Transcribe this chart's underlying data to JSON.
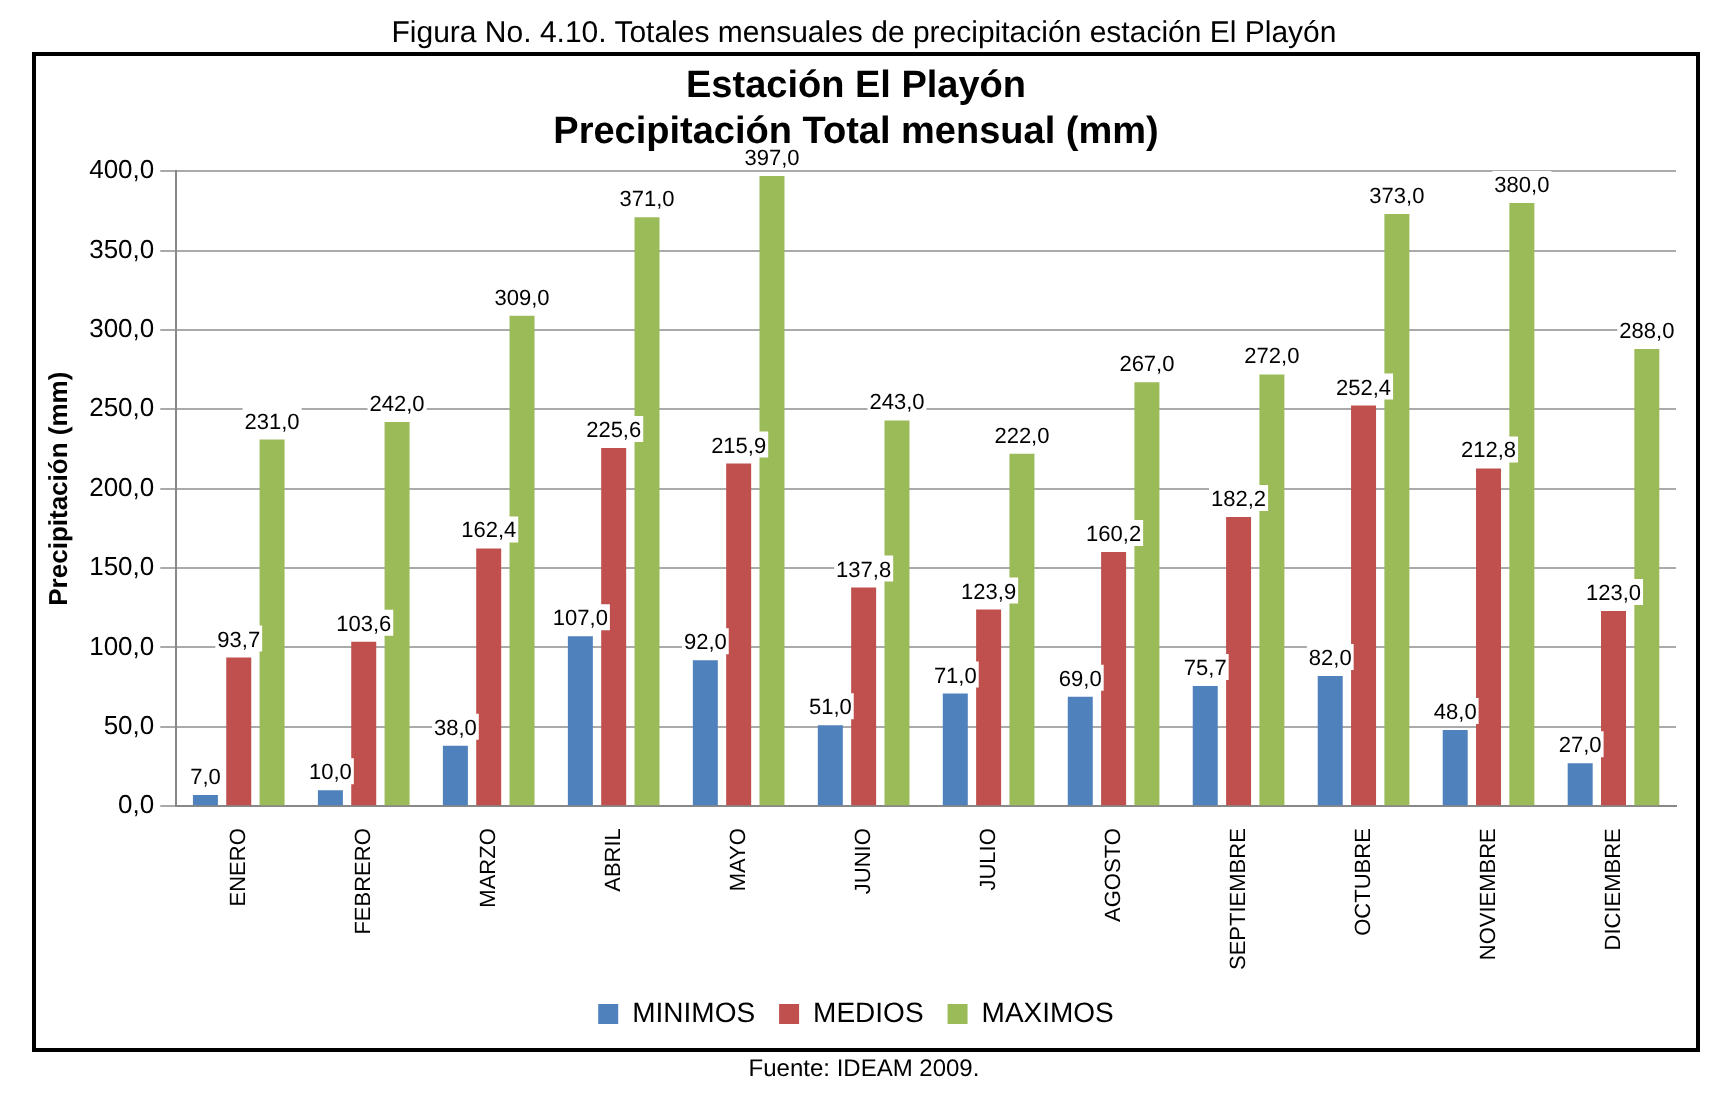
{
  "chart_data": {
    "type": "bar",
    "title": "Estación El Playón\nPrecipitación Total mensual (mm)",
    "ylabel": "Precipitación (mm)",
    "annotations": [
      "Figura No. 4.10. Totales mensuales de precipitación estación El Playón",
      "Fuente: IDEAM 2009."
    ],
    "categories": [
      "ENERO",
      "FEBRERO",
      "MARZO",
      "ABRIL",
      "MAYO",
      "JUNIO",
      "JULIO",
      "AGOSTO",
      "SEPTIEMBRE",
      "OCTUBRE",
      "NOVIEMBRE",
      "DICIEMBRE"
    ],
    "series": [
      {
        "name": "MINIMOS",
        "color": "#4f81bd",
        "values": [
          7,
          10,
          38,
          107,
          92,
          51,
          71,
          69,
          75.7,
          82,
          48,
          27
        ],
        "value_labels": [
          "7,0",
          "10,0",
          "38,0",
          "107,0",
          "92,0",
          "51,0",
          "71,0",
          "69,0",
          "75,7",
          "82,0",
          "48,0",
          "27,0"
        ]
      },
      {
        "name": "MEDIOS",
        "color": "#c0504d",
        "values": [
          93.7,
          103.6,
          162.4,
          225.6,
          215.9,
          137.8,
          123.9,
          160.2,
          182.2,
          252.4,
          212.8,
          123
        ],
        "value_labels": [
          "93,7",
          "103,6",
          "162,4",
          "225,6",
          "215,9",
          "137,8",
          "123,9",
          "160,2",
          "182,2",
          "252,4",
          "212,8",
          "123,0"
        ]
      },
      {
        "name": "MAXIMOS",
        "color": "#9bbb59",
        "values": [
          231,
          242,
          309,
          371,
          397,
          243,
          222,
          267,
          272,
          373,
          380,
          288
        ],
        "value_labels": [
          "231,0",
          "242,0",
          "309,0",
          "371,0",
          "397,0",
          "243,0",
          "222,0",
          "267,0",
          "272,0",
          "373,0",
          "380,0",
          "288,0"
        ]
      }
    ],
    "ylim": [
      0,
      400
    ],
    "yticks": [
      {
        "value": 0,
        "label": "0,0"
      },
      {
        "value": 50,
        "label": "50,0"
      },
      {
        "value": 100,
        "label": "100,0"
      },
      {
        "value": 150,
        "label": "150,0"
      },
      {
        "value": 200,
        "label": "200,0"
      },
      {
        "value": 250,
        "label": "250,0"
      },
      {
        "value": 300,
        "label": "300,0"
      },
      {
        "value": 350,
        "label": "350,0"
      },
      {
        "value": 400,
        "label": "400,0"
      }
    ],
    "grid": "y",
    "legend": "bottom"
  }
}
